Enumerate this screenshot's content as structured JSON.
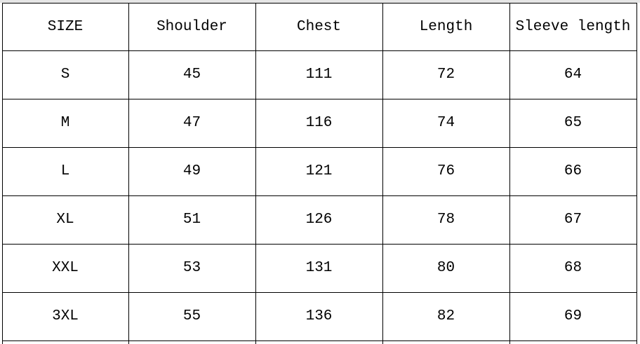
{
  "table": {
    "header": [
      "SIZE",
      "Shoulder",
      "Chest",
      "Length",
      "Sleeve length"
    ],
    "rows": [
      [
        "S",
        "45",
        "111",
        "72",
        "64"
      ],
      [
        "M",
        "47",
        "116",
        "74",
        "65"
      ],
      [
        "L",
        "49",
        "121",
        "76",
        "66"
      ],
      [
        "XL",
        "51",
        "126",
        "78",
        "67"
      ],
      [
        "XXL",
        "53",
        "131",
        "80",
        "68"
      ],
      [
        "3XL",
        "55",
        "136",
        "82",
        "69"
      ]
    ]
  }
}
